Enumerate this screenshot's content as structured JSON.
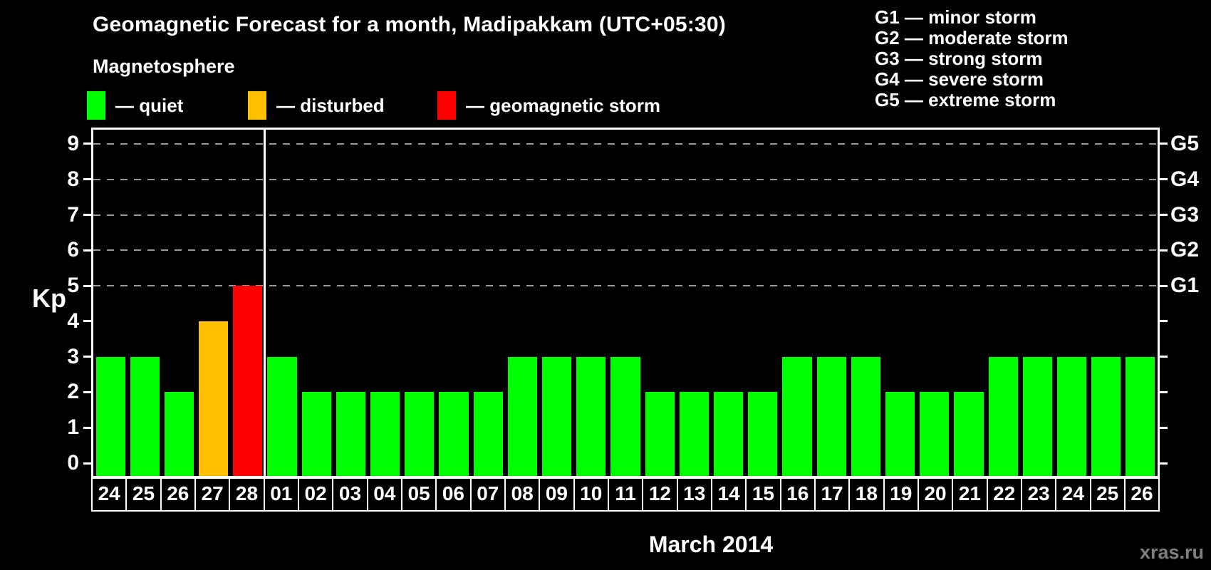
{
  "title": "Geomagnetic Forecast for a month, Madipakkam (UTC+05:30)",
  "subtitle": "Magnetosphere",
  "legend_items": [
    {
      "name": "quiet",
      "label": "— quiet",
      "color": "#00FF00",
      "x": 122
    },
    {
      "name": "disturbed",
      "label": "— disturbed",
      "color": "#FFC000",
      "x": 348
    },
    {
      "name": "storm",
      "label": "— geomagnetic storm",
      "color": "#FF0000",
      "x": 614
    }
  ],
  "storm_scale_legend": [
    "G1 — minor storm",
    "G2 — moderate storm",
    "G3 — strong storm",
    "G4 — severe storm",
    "G5 — extreme storm"
  ],
  "watermark": "xras.ru",
  "chart_data": {
    "type": "bar",
    "title": "Geomagnetic Forecast for a month, Madipakkam (UTC+05:30)",
    "xlabel": "March 2014",
    "ylabel": "Kp",
    "ylim": [
      0,
      9
    ],
    "yticks": [
      0,
      1,
      2,
      3,
      4,
      5,
      6,
      7,
      8,
      9
    ],
    "grid": "dashed horizontal lines at Kp 5,6,7,8,9",
    "legend_position": "top",
    "right_axis": [
      {
        "label": "G1",
        "kp": 5
      },
      {
        "label": "G2",
        "kp": 6
      },
      {
        "label": "G3",
        "kp": 7
      },
      {
        "label": "G4",
        "kp": 8
      },
      {
        "label": "G5",
        "kp": 9
      }
    ],
    "categories": [
      "24",
      "25",
      "26",
      "27",
      "28",
      "01",
      "02",
      "03",
      "04",
      "05",
      "06",
      "07",
      "08",
      "09",
      "10",
      "11",
      "12",
      "13",
      "14",
      "15",
      "16",
      "17",
      "18",
      "19",
      "20",
      "21",
      "22",
      "23",
      "24",
      "25",
      "26"
    ],
    "values": [
      3,
      3,
      2,
      4,
      5,
      3,
      2,
      2,
      2,
      2,
      2,
      2,
      3,
      3,
      3,
      3,
      2,
      2,
      2,
      2,
      3,
      3,
      3,
      2,
      2,
      2,
      3,
      3,
      3,
      3,
      3
    ],
    "statuses": [
      "quiet",
      "quiet",
      "quiet",
      "disturbed",
      "storm",
      "quiet",
      "quiet",
      "quiet",
      "quiet",
      "quiet",
      "quiet",
      "quiet",
      "quiet",
      "quiet",
      "quiet",
      "quiet",
      "quiet",
      "quiet",
      "quiet",
      "quiet",
      "quiet",
      "quiet",
      "quiet",
      "quiet",
      "quiet",
      "quiet",
      "quiet",
      "quiet",
      "quiet",
      "quiet",
      "quiet"
    ],
    "status_colors": {
      "quiet": "#00FF00",
      "disturbed": "#FFC000",
      "storm": "#FF0000"
    },
    "month_separator_after_index": 4
  }
}
